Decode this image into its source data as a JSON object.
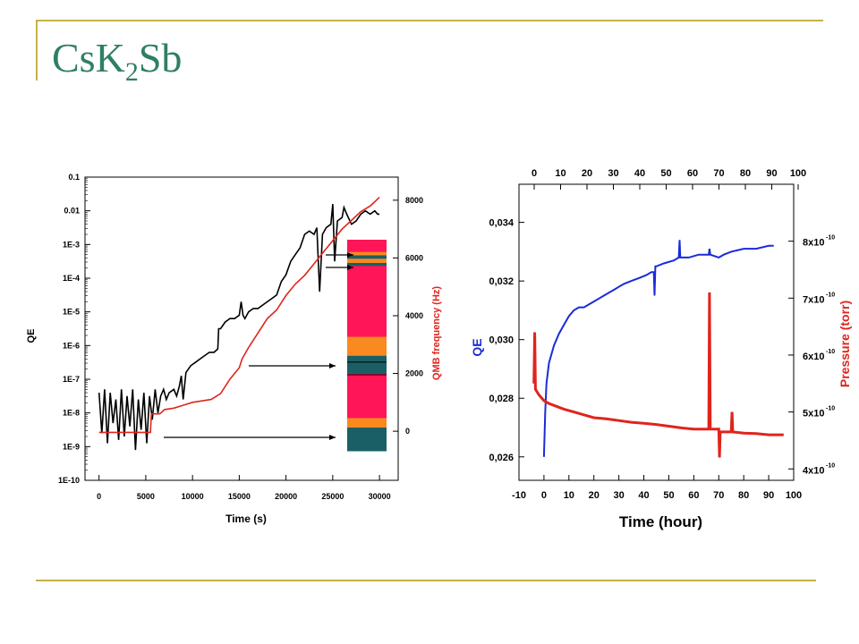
{
  "slide": {
    "title_parts": [
      "CsK",
      "2",
      "Sb"
    ],
    "accent_color": "#c9b04a",
    "title_color": "#2f7f63"
  },
  "chart_data": [
    {
      "type": "line",
      "x_label": "Time (s)",
      "x_range": [
        -1500,
        32000
      ],
      "x_ticks": [
        "0",
        "5000",
        "10000",
        "15000",
        "20000",
        "25000",
        "30000"
      ],
      "y_label": "QE",
      "y_scale": "log",
      "y_range_exp": [
        -10,
        -1
      ],
      "y_ticks": [
        "1E-10",
        "1E-9",
        "1E-8",
        "1E-7",
        "1E-6",
        "1E-5",
        "1E-4",
        "1E-3",
        "0.01",
        "0.1"
      ],
      "y2_label": "QMB frequency (Hz)",
      "y2_range": [
        -1700,
        8800
      ],
      "y2_ticks": [
        "0",
        "2000",
        "4000",
        "6000",
        "8000"
      ],
      "y2_color": "#e0241c",
      "series": [
        {
          "color": "#000000",
          "axis": "left",
          "points": [
            [
              0,
              -7.4
            ],
            [
              300,
              -8.6
            ],
            [
              600,
              -7.3
            ],
            [
              900,
              -8.9
            ],
            [
              1200,
              -7.4
            ],
            [
              1500,
              -8.3
            ],
            [
              1800,
              -7.6
            ],
            [
              2100,
              -8.8
            ],
            [
              2400,
              -7.3
            ],
            [
              2700,
              -8.7
            ],
            [
              3000,
              -7.5
            ],
            [
              3300,
              -8.4
            ],
            [
              3600,
              -7.3
            ],
            [
              3900,
              -9.1
            ],
            [
              4200,
              -7.6
            ],
            [
              4500,
              -8.5
            ],
            [
              4800,
              -7.4
            ],
            [
              5100,
              -8.9
            ],
            [
              5400,
              -7.5
            ],
            [
              5700,
              -8.2
            ],
            [
              6000,
              -7.3
            ],
            [
              6300,
              -8.0
            ],
            [
              6600,
              -7.5
            ],
            [
              6900,
              -7.3
            ],
            [
              7200,
              -7.6
            ],
            [
              7500,
              -7.4
            ],
            [
              8000,
              -7.3
            ],
            [
              8300,
              -7.5
            ],
            [
              8600,
              -7.2
            ],
            [
              8800,
              -6.9
            ],
            [
              9000,
              -7.6
            ],
            [
              9300,
              -6.8
            ],
            [
              9800,
              -6.6
            ],
            [
              10300,
              -6.5
            ],
            [
              10800,
              -6.4
            ],
            [
              11300,
              -6.3
            ],
            [
              11800,
              -6.2
            ],
            [
              12300,
              -6.2
            ],
            [
              12700,
              -6.1
            ],
            [
              12800,
              -5.5
            ],
            [
              13000,
              -5.5
            ],
            [
              13500,
              -5.3
            ],
            [
              14000,
              -5.2
            ],
            [
              14500,
              -5.2
            ],
            [
              15000,
              -5.1
            ],
            [
              15200,
              -4.7
            ],
            [
              15400,
              -5.1
            ],
            [
              15600,
              -5.2
            ],
            [
              16000,
              -5.0
            ],
            [
              16500,
              -4.9
            ],
            [
              17000,
              -4.9
            ],
            [
              17500,
              -4.8
            ],
            [
              18000,
              -4.7
            ],
            [
              18500,
              -4.6
            ],
            [
              19000,
              -4.5
            ],
            [
              19500,
              -4.1
            ],
            [
              20000,
              -3.9
            ],
            [
              20500,
              -3.5
            ],
            [
              21000,
              -3.3
            ],
            [
              21500,
              -3.1
            ],
            [
              22000,
              -2.7
            ],
            [
              22500,
              -2.6
            ],
            [
              23000,
              -2.7
            ],
            [
              23300,
              -2.5
            ],
            [
              23600,
              -4.4
            ],
            [
              23900,
              -2.7
            ],
            [
              24300,
              -2.5
            ],
            [
              24800,
              -2.4
            ],
            [
              25000,
              -1.8
            ],
            [
              25200,
              -3.5
            ],
            [
              25500,
              -2.3
            ],
            [
              26000,
              -2.2
            ],
            [
              26200,
              -1.9
            ],
            [
              26500,
              -2.1
            ],
            [
              27000,
              -2.4
            ],
            [
              27500,
              -2.3
            ],
            [
              28000,
              -2.1
            ],
            [
              28500,
              -2.0
            ],
            [
              29000,
              -2.1
            ],
            [
              29500,
              -2.0
            ],
            [
              29800,
              -2.1
            ],
            [
              30000,
              -2.1
            ]
          ]
        },
        {
          "color": "#e0241c",
          "axis": "right",
          "points": [
            [
              0,
              -40
            ],
            [
              3000,
              -40
            ],
            [
              5500,
              -40
            ],
            [
              5600,
              600
            ],
            [
              6500,
              600
            ],
            [
              7000,
              750
            ],
            [
              8000,
              800
            ],
            [
              9000,
              900
            ],
            [
              10000,
              1000
            ],
            [
              11000,
              1050
            ],
            [
              12000,
              1100
            ],
            [
              13000,
              1300
            ],
            [
              14000,
              1800
            ],
            [
              15000,
              2200
            ],
            [
              15300,
              2500
            ],
            [
              16000,
              2900
            ],
            [
              17000,
              3400
            ],
            [
              18000,
              3900
            ],
            [
              19000,
              4200
            ],
            [
              20000,
              4700
            ],
            [
              21000,
              5100
            ],
            [
              22000,
              5400
            ],
            [
              23000,
              5800
            ],
            [
              24000,
              6200
            ],
            [
              25000,
              6600
            ],
            [
              26000,
              7000
            ],
            [
              27000,
              7300
            ],
            [
              28000,
              7600
            ],
            [
              29000,
              7800
            ],
            [
              30000,
              8100
            ]
          ]
        }
      ],
      "bar_band_colors": [
        "#1a5f66",
        "#f98a1f",
        "#ff1558",
        "#1a5f66",
        "#ff1558",
        "#f98a1f",
        "#ff1558",
        "#1a5f66",
        "#f98a1f",
        "#1a5f66",
        "#f98a1f",
        "#1a5f66",
        "#ff1558"
      ],
      "arrow_color": "#000000"
    },
    {
      "type": "line",
      "x_label": "Time (hour)",
      "x_range": [
        -10,
        100
      ],
      "x_ticks": [
        "-10",
        "0",
        "10",
        "20",
        "30",
        "40",
        "50",
        "60",
        "70",
        "80",
        "90",
        "100"
      ],
      "x2_ticks": [
        "0",
        "10",
        "20",
        "30",
        "40",
        "50",
        "60",
        "70",
        "80",
        "90",
        "100"
      ],
      "y_label": "QE",
      "y_label_color": "#1a2bd8",
      "y_range": [
        0.0252,
        0.0353
      ],
      "y_ticks": [
        "0,026",
        "0,028",
        "0,030",
        "0,032",
        "0,034"
      ],
      "y2_label": "Pressure (torr)",
      "y2_label_color": "#e0241c",
      "y2_range": [
        3.8,
        9.0
      ],
      "y2_ticks": [
        {
          "mant": "4x10",
          "exp": "-10"
        },
        {
          "mant": "5x10",
          "exp": "-10"
        },
        {
          "mant": "6x10",
          "exp": "-10"
        },
        {
          "mant": "7x10",
          "exp": "-10"
        },
        {
          "mant": "8x10",
          "exp": "-10"
        }
      ],
      "series": [
        {
          "color": "#1a2bd8",
          "axis": "left",
          "points": [
            [
              0,
              0.026
            ],
            [
              0.5,
              0.0275
            ],
            [
              1,
              0.0285
            ],
            [
              2,
              0.0292
            ],
            [
              4,
              0.0298
            ],
            [
              6,
              0.0302
            ],
            [
              8,
              0.0305
            ],
            [
              10,
              0.0308
            ],
            [
              12,
              0.031
            ],
            [
              14,
              0.0311
            ],
            [
              16,
              0.0311
            ],
            [
              18,
              0.0312
            ],
            [
              20,
              0.0313
            ],
            [
              22,
              0.0314
            ],
            [
              24,
              0.0315
            ],
            [
              26,
              0.0316
            ],
            [
              28,
              0.0317
            ],
            [
              30,
              0.0318
            ],
            [
              32,
              0.0319
            ],
            [
              35,
              0.032
            ],
            [
              38,
              0.0321
            ],
            [
              41,
              0.0322
            ],
            [
              43,
              0.0323
            ],
            [
              44,
              0.0323
            ],
            [
              44.3,
              0.0315
            ],
            [
              44.6,
              0.0325
            ],
            [
              45,
              0.0325
            ],
            [
              48,
              0.0326
            ],
            [
              52,
              0.0327
            ],
            [
              54,
              0.0328
            ],
            [
              54.3,
              0.0334
            ],
            [
              54.6,
              0.0328
            ],
            [
              58,
              0.0328
            ],
            [
              62,
              0.0329
            ],
            [
              66,
              0.0329
            ],
            [
              66.3,
              0.0331
            ],
            [
              66.6,
              0.0329
            ],
            [
              70,
              0.0328
            ],
            [
              72,
              0.0329
            ],
            [
              75,
              0.033
            ],
            [
              80,
              0.0331
            ],
            [
              85,
              0.0331
            ],
            [
              90,
              0.0332
            ],
            [
              92,
              0.0332
            ]
          ]
        },
        {
          "color": "#e0241c",
          "axis": "right",
          "points": [
            [
              -4,
              5.5
            ],
            [
              -3.7,
              6.4
            ],
            [
              -3.4,
              5.4
            ],
            [
              -2,
              5.3
            ],
            [
              0,
              5.2
            ],
            [
              2,
              5.15
            ],
            [
              5,
              5.1
            ],
            [
              8,
              5.05
            ],
            [
              12,
              5.0
            ],
            [
              16,
              4.95
            ],
            [
              20,
              4.9
            ],
            [
              25,
              4.88
            ],
            [
              30,
              4.85
            ],
            [
              35,
              4.82
            ],
            [
              40,
              4.8
            ],
            [
              45,
              4.78
            ],
            [
              50,
              4.75
            ],
            [
              55,
              4.72
            ],
            [
              60,
              4.7
            ],
            [
              65,
              4.7
            ],
            [
              66,
              4.7
            ],
            [
              66.3,
              7.1
            ],
            [
              66.6,
              4.7
            ],
            [
              69,
              4.7
            ],
            [
              70,
              4.7
            ],
            [
              70.3,
              4.2
            ],
            [
              70.6,
              4.65
            ],
            [
              74,
              4.65
            ],
            [
              75,
              4.65
            ],
            [
              75.3,
              5.0
            ],
            [
              75.6,
              4.65
            ],
            [
              80,
              4.63
            ],
            [
              85,
              4.62
            ],
            [
              90,
              4.6
            ],
            [
              96,
              4.6
            ]
          ]
        }
      ]
    }
  ]
}
